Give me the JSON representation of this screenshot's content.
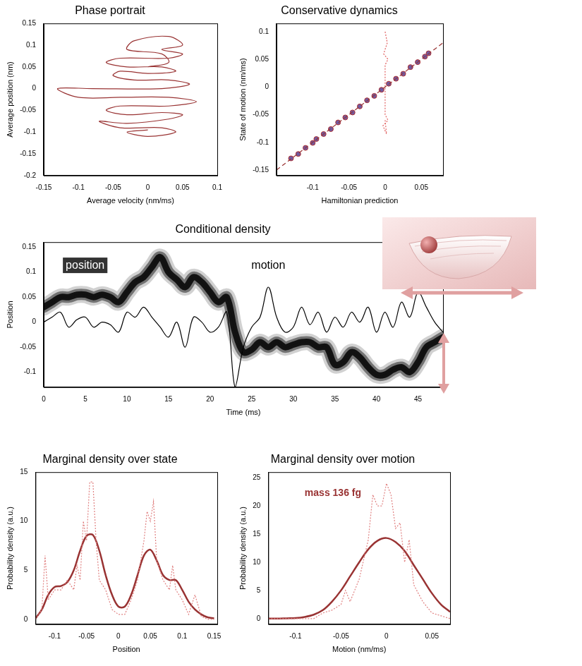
{
  "chart_data": [
    {
      "type": "line",
      "title": "Phase portrait",
      "xlabel": "Average velocity (nm/ms)",
      "ylabel": "Average position (nm)",
      "xlim": [
        -0.15,
        0.1
      ],
      "xticks": [
        -0.15,
        -0.1,
        -0.05,
        0,
        0.05,
        0.1
      ],
      "ylim": [
        -0.2,
        0.15
      ],
      "yticks": [
        -0.2,
        -0.15,
        -0.1,
        -0.05,
        0,
        0.05,
        0.1,
        0.15
      ],
      "grid": false,
      "series": [
        {
          "color": "#993333",
          "type": "line",
          "line_style": "solid",
          "marker": "none",
          "x": [
            0,
            0.03,
            0.02,
            -0.03,
            -0.02,
            0.03,
            0.05,
            0.02,
            0.05,
            0.03,
            -0.04,
            -0.06,
            -0.03,
            0.02,
            0.04,
            0,
            -0.04,
            -0.05,
            -0.02,
            0.03,
            0.06,
            0.02,
            -0.08,
            -0.13,
            -0.1,
            -0.04,
            0.03,
            0.07,
            0.03,
            -0.04,
            -0.06,
            -0.03,
            0.02,
            0.05,
            0.03,
            -0.03,
            -0.07,
            -0.04,
            0.02,
            0.04,
            0,
            -0.03,
            0
          ],
          "values": [
            0.05,
            0.06,
            0.08,
            0.09,
            0.11,
            0.12,
            0.1,
            0.09,
            0.08,
            0.07,
            0.07,
            0.06,
            0.05,
            0.05,
            0.04,
            0.035,
            0.04,
            0.03,
            0.02,
            0.02,
            0.01,
            0,
            0,
            0,
            -0.02,
            -0.02,
            -0.02,
            -0.03,
            -0.04,
            -0.04,
            -0.05,
            -0.06,
            -0.055,
            -0.06,
            -0.07,
            -0.08,
            -0.075,
            -0.09,
            -0.09,
            -0.1,
            -0.11,
            -0.1,
            -0.095
          ]
        }
      ]
    },
    {
      "type": "scatter",
      "title": "Conservative dynamics",
      "xlabel": "Hamiltonian prediction",
      "ylabel": "State of motion (nm/ms)",
      "xlim": [
        -0.15,
        0.08
      ],
      "xticks": [
        -0.1,
        -0.05,
        0,
        0.05
      ],
      "ylim": [
        -0.16,
        0.115
      ],
      "yticks": [
        -0.15,
        -0.1,
        -0.05,
        0,
        0.05,
        0.1
      ],
      "grid": false,
      "series": [
        {
          "color": "#993333",
          "type": "line",
          "line_style": "dashed",
          "marker": "none",
          "x": [
            -0.15,
            0.08
          ],
          "values": [
            -0.15,
            0.08
          ]
        },
        {
          "color": "#e06060",
          "type": "line",
          "line_style": "dotted",
          "marker": "none",
          "x": [
            0,
            0.003,
            -0.002,
            0.004,
            0,
            0,
            0,
            0.004,
            -0.003,
            0.002,
            0
          ],
          "values": [
            0.1,
            0.08,
            0.06,
            0.05,
            0.04,
            0,
            -0.05,
            -0.06,
            -0.07,
            -0.085,
            -0.06
          ]
        },
        {
          "color": "#6f5aa0",
          "type": "scatter",
          "marker": "circle",
          "x": [
            -0.13,
            -0.12,
            -0.11,
            -0.1,
            -0.095,
            -0.085,
            -0.075,
            -0.065,
            -0.055,
            -0.045,
            -0.035,
            -0.025,
            -0.015,
            -0.005,
            0.005,
            0.015,
            0.025,
            0.035,
            0.045,
            0.055,
            0.06
          ],
          "values": [
            -0.129,
            -0.121,
            -0.11,
            -0.101,
            -0.094,
            -0.085,
            -0.076,
            -0.064,
            -0.055,
            -0.046,
            -0.035,
            -0.024,
            -0.016,
            -0.005,
            0.006,
            0.015,
            0.024,
            0.036,
            0.045,
            0.055,
            0.061
          ]
        }
      ]
    },
    {
      "type": "line",
      "title": "Conditional density",
      "xlabel": "Time (ms)",
      "ylabel": "Position",
      "xlim": [
        0,
        48
      ],
      "xticks": [
        0,
        5,
        10,
        15,
        20,
        25,
        30,
        35,
        40,
        45
      ],
      "ylim": [
        -0.13,
        0.16
      ],
      "yticks": [
        -0.1,
        -0.05,
        0,
        0.05,
        0.1,
        0.15
      ],
      "grid": false,
      "series": [
        {
          "name": "position",
          "color": "#ffffff",
          "type": "line",
          "line_style": "solid",
          "marker": "none",
          "x": [
            0,
            1,
            2,
            3,
            4,
            5,
            6,
            7,
            8,
            9,
            10,
            11,
            12,
            13,
            14,
            15,
            16,
            17,
            18,
            19,
            20,
            21,
            22,
            23,
            24,
            25,
            26,
            27,
            28,
            29,
            30,
            31,
            32,
            33,
            34,
            35,
            36,
            37,
            38,
            39,
            40,
            41,
            42,
            43,
            44,
            45,
            46,
            47,
            48
          ],
          "values": [
            0.03,
            0.04,
            0.05,
            0.05,
            0.055,
            0.055,
            0.05,
            0.055,
            0.05,
            0.04,
            0.06,
            0.08,
            0.09,
            0.11,
            0.13,
            0.1,
            0.085,
            0.07,
            0.09,
            0.08,
            0.06,
            0.04,
            0.05,
            -0.02,
            -0.06,
            -0.055,
            -0.04,
            -0.05,
            -0.04,
            -0.05,
            -0.045,
            -0.04,
            -0.04,
            -0.05,
            -0.05,
            -0.085,
            -0.08,
            -0.06,
            -0.07,
            -0.09,
            -0.105,
            -0.105,
            -0.095,
            -0.09,
            -0.1,
            -0.08,
            -0.05,
            -0.04,
            -0.03
          ]
        },
        {
          "name": "motion",
          "color": "#000000",
          "type": "line",
          "line_style": "solid",
          "marker": "none",
          "x": [
            0,
            1,
            2,
            3,
            4,
            5,
            6,
            7,
            8,
            9,
            10,
            11,
            12,
            13,
            14,
            15,
            16,
            17,
            18,
            19,
            20,
            21,
            22,
            23,
            24,
            25,
            26,
            27,
            28,
            29,
            30,
            31,
            32,
            33,
            34,
            35,
            36,
            37,
            38,
            39,
            40,
            41,
            42,
            43,
            44,
            45,
            46,
            47,
            48
          ],
          "values": [
            0,
            0.01,
            0.02,
            -0.01,
            0.005,
            0.01,
            -0.01,
            0,
            -0.005,
            -0.02,
            0.02,
            0.01,
            0.03,
            0.01,
            -0.01,
            -0.03,
            0,
            -0.05,
            0.01,
            0,
            -0.02,
            -0.01,
            0.02,
            -0.13,
            -0.05,
            -0.01,
            0.01,
            0.07,
            0.01,
            -0.02,
            -0.01,
            0.03,
            -0.005,
            0.02,
            -0.02,
            0.01,
            -0.01,
            0.02,
            0,
            0.03,
            -0.02,
            0.02,
            -0.01,
            0.04,
            0.01,
            0.06,
            0.03,
            0,
            -0.02
          ]
        }
      ]
    },
    {
      "type": "line",
      "title": "Marginal density over state",
      "xlabel": "Position",
      "ylabel": "Probability density (a.u.)",
      "xlim": [
        -0.13,
        0.155
      ],
      "xticks": [
        -0.1,
        -0.05,
        0,
        0.05,
        0.1,
        0.15
      ],
      "ylim": [
        -0.5,
        15
      ],
      "yticks": [
        0,
        5,
        10,
        15
      ],
      "grid": false,
      "series": [
        {
          "color": "#e08080",
          "type": "line",
          "line_style": "dotted",
          "marker": "none",
          "x": [
            -0.13,
            -0.12,
            -0.115,
            -0.11,
            -0.1,
            -0.09,
            -0.08,
            -0.07,
            -0.065,
            -0.06,
            -0.055,
            -0.05,
            -0.045,
            -0.04,
            -0.035,
            -0.03,
            -0.02,
            -0.01,
            0,
            0.01,
            0.02,
            0.03,
            0.04,
            0.045,
            0.05,
            0.055,
            0.06,
            0.07,
            0.08,
            0.085,
            0.09,
            0.1,
            0.11,
            0.12,
            0.13,
            0.14,
            0.15
          ],
          "values": [
            0,
            1,
            6.5,
            2,
            3,
            3,
            4,
            3,
            5.5,
            4,
            10,
            8,
            14,
            14,
            8,
            4,
            3,
            1,
            0.5,
            0.5,
            2,
            4,
            8,
            11,
            10,
            12,
            6,
            4,
            3,
            5.5,
            3,
            2,
            0.5,
            2.5,
            0.3,
            0,
            0
          ]
        },
        {
          "color": "#993333",
          "type": "line",
          "line_style": "solid",
          "marker": "none",
          "x": [
            -0.13,
            -0.12,
            -0.11,
            -0.1,
            -0.09,
            -0.08,
            -0.07,
            -0.06,
            -0.05,
            -0.04,
            -0.03,
            -0.02,
            -0.01,
            0,
            0.01,
            0.02,
            0.03,
            0.04,
            0.05,
            0.06,
            0.07,
            0.08,
            0.09,
            0.1,
            0.11,
            0.12,
            0.13,
            0.14,
            0.15
          ],
          "values": [
            0.1,
            1,
            2.5,
            3.3,
            3.4,
            3.8,
            5,
            7,
            8.5,
            8.6,
            7,
            4.5,
            2.5,
            1.3,
            1.3,
            2.5,
            4.5,
            6.5,
            7.1,
            6,
            4.5,
            4,
            4,
            3,
            1.8,
            1,
            0.5,
            0.2,
            0.1
          ]
        }
      ]
    },
    {
      "type": "line",
      "title": "Marginal density over motion",
      "xlabel": "Motion (nm/ms)",
      "ylabel": "Probability density (a.u.)",
      "xlim": [
        -0.13,
        0.07
      ],
      "xticks": [
        -0.1,
        -0.05,
        0,
        0.05
      ],
      "ylim": [
        -1,
        26
      ],
      "yticks": [
        0,
        5,
        10,
        15,
        20,
        25
      ],
      "grid": false,
      "annotations": [
        "mass 136 fg"
      ],
      "series": [
        {
          "color": "#e08080",
          "type": "line",
          "line_style": "dotted",
          "marker": "none",
          "x": [
            -0.13,
            -0.08,
            -0.07,
            -0.06,
            -0.05,
            -0.045,
            -0.04,
            -0.03,
            -0.02,
            -0.015,
            -0.01,
            -0.005,
            0,
            0.005,
            0.01,
            0.015,
            0.02,
            0.025,
            0.03,
            0.04,
            0.05,
            0.06,
            0.07
          ],
          "values": [
            0,
            0,
            1,
            1.5,
            2.5,
            5,
            3,
            7,
            14,
            22,
            20,
            20,
            24,
            22,
            16,
            17,
            10,
            14,
            6,
            3,
            1,
            0.5,
            0
          ]
        },
        {
          "color": "#993333",
          "type": "line",
          "line_style": "solid",
          "marker": "none",
          "x": [
            -0.13,
            -0.12,
            -0.11,
            -0.1,
            -0.09,
            -0.08,
            -0.07,
            -0.06,
            -0.05,
            -0.04,
            -0.03,
            -0.02,
            -0.01,
            0,
            0.01,
            0.02,
            0.03,
            0.04,
            0.05,
            0.06,
            0.07
          ],
          "values": [
            0,
            0,
            0.05,
            0.1,
            0.3,
            0.7,
            1.5,
            3,
            5,
            7.5,
            10,
            12.3,
            13.8,
            14.3,
            13.6,
            12,
            9.5,
            7,
            4.5,
            2.5,
            1.2
          ]
        }
      ]
    }
  ]
}
